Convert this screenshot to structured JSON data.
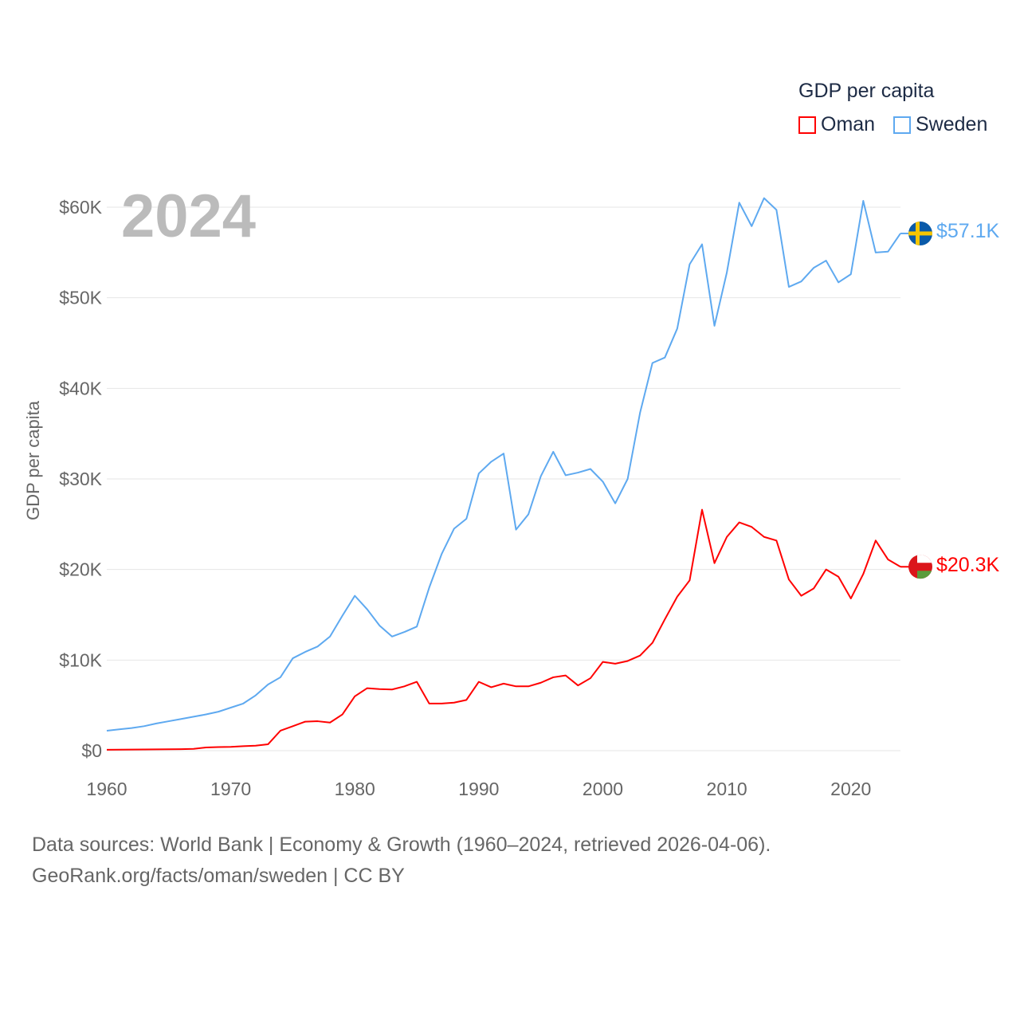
{
  "legend": {
    "title": "GDP per capita",
    "items": [
      {
        "label": "Oman",
        "color": "#ff0000"
      },
      {
        "label": "Sweden",
        "color": "#5ea9f0"
      }
    ]
  },
  "year_label": "2024",
  "end_labels": {
    "oman": "$20.3K",
    "sweden": "$57.1K"
  },
  "flags": {
    "oman": "oman-flag-icon",
    "sweden": "sweden-flag-icon"
  },
  "source": {
    "line1": "Data sources: World Bank | Economy & Growth (1960–2024, retrieved 2026-04-06).",
    "line2": "GeoRank.org/facts/oman/sweden | CC BY"
  },
  "chart_data": {
    "type": "line",
    "title": "GDP per capita",
    "xlabel": "",
    "ylabel": "GDP per capita",
    "xlim": [
      1960,
      2024
    ],
    "ylim": [
      0,
      60000
    ],
    "grid": true,
    "legend_position": "top-right",
    "x_ticks": [
      1960,
      1970,
      1980,
      1990,
      2000,
      2010,
      2020
    ],
    "y_ticks": [
      {
        "v": 0,
        "label": "$0"
      },
      {
        "v": 10000,
        "label": "$10K"
      },
      {
        "v": 20000,
        "label": "$20K"
      },
      {
        "v": 30000,
        "label": "$30K"
      },
      {
        "v": 40000,
        "label": "$40K"
      },
      {
        "v": 50000,
        "label": "$50K"
      },
      {
        "v": 60000,
        "label": "$60K"
      }
    ],
    "x_start": 1960,
    "series": [
      {
        "name": "Oman",
        "color": "#ff0000",
        "values": [
          100,
          110,
          120,
          130,
          140,
          150,
          160,
          200,
          350,
          400,
          420,
          500,
          550,
          700,
          2200,
          2700,
          3200,
          3250,
          3100,
          4000,
          6000,
          6900,
          6800,
          6750,
          7100,
          7600,
          5200,
          5200,
          5300,
          5600,
          7600,
          7000,
          7400,
          7100,
          7100,
          7500,
          8100,
          8300,
          7200,
          8000,
          9800,
          9600,
          9900,
          10500,
          11900,
          14500,
          17000,
          18800,
          26600,
          20700,
          23600,
          25200,
          24700,
          23600,
          23200,
          18900,
          17100,
          17900,
          20000,
          19200,
          16800,
          19500,
          23200,
          21100,
          20300
        ]
      },
      {
        "name": "Sweden",
        "color": "#5ea9f0",
        "values": [
          2200,
          2350,
          2500,
          2700,
          3000,
          3250,
          3500,
          3750,
          4000,
          4300,
          4750,
          5200,
          6100,
          7300,
          8100,
          10200,
          10900,
          11500,
          12600,
          14900,
          17100,
          15600,
          13800,
          12600,
          13100,
          13700,
          18000,
          21700,
          24500,
          25600,
          30600,
          31900,
          32800,
          24400,
          26100,
          30300,
          33000,
          30400,
          30700,
          31100,
          29700,
          27300,
          30000,
          37300,
          42800,
          43400,
          46600,
          53700,
          55900,
          46900,
          52800,
          60500,
          57900,
          61000,
          59700,
          51200,
          51800,
          53300,
          54100,
          51700,
          52600,
          60700,
          55000,
          55100,
          57100
        ]
      }
    ]
  }
}
